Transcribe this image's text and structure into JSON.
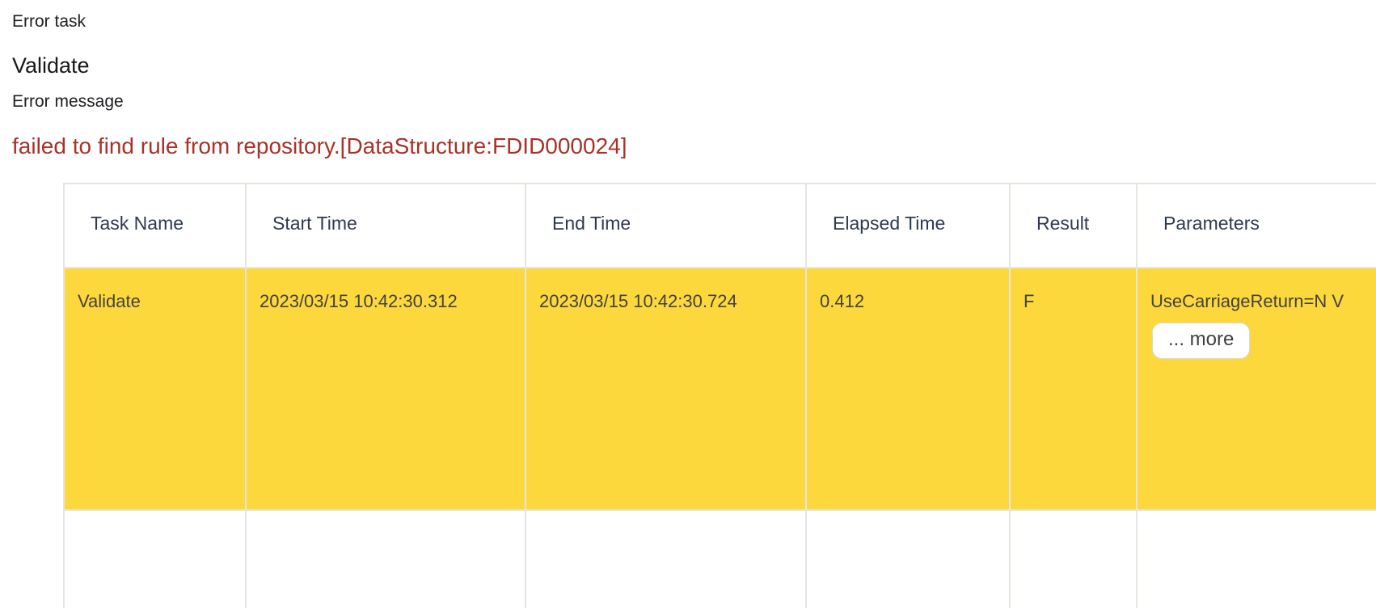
{
  "error_panel": {
    "task_label": "Error task",
    "task_value": "Validate",
    "message_label": "Error message",
    "message_value": "failed to find rule from repository.[DataStructure:FDID000024]"
  },
  "colors": {
    "error_message": "#a93228",
    "highlight_row": "#fdd83d",
    "header_text": "#2e3a4e",
    "divider": "#e7e5e0"
  },
  "results_table": {
    "columns": [
      "Task Name",
      "Start Time",
      "End Time",
      "Elapsed Time",
      "Result",
      "Parameters"
    ],
    "rows": [
      {
        "task_name": "Validate",
        "start_time": "2023/03/15 10:42:30.312",
        "end_time": "2023/03/15 10:42:30.724",
        "elapsed_time": "0.412",
        "result": "F",
        "parameters": "UseCarriageReturn=N V",
        "more_button_label": "... more"
      }
    ]
  }
}
